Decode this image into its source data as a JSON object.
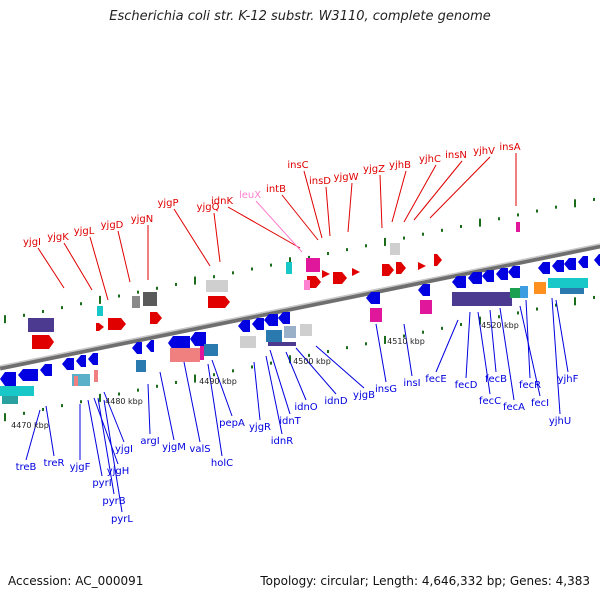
{
  "title": "Escherichia coli str. K-12 substr. W3110, complete genome",
  "footer": {
    "accession": "Accession: AC_000091",
    "summary": "Topology: circular; Length: 4,646,332 bp; Genes: 4,383"
  },
  "colors": {
    "forward_strand": "#e00000",
    "reverse_strand": "#0000e0",
    "rna_gene": "#ff7fd0",
    "backbone": "#888888",
    "grid_dots": "#1a6b1a"
  },
  "ruler": [
    {
      "label": "4470 kbp"
    },
    {
      "label": "4480 kbp"
    },
    {
      "label": "4490 kbp"
    },
    {
      "label": "4500 kbp"
    },
    {
      "label": "4510 kbp"
    },
    {
      "label": "4520 kbp"
    }
  ],
  "genes_top": [
    {
      "name": "yjgI"
    },
    {
      "name": "yjgK"
    },
    {
      "name": "yjgL"
    },
    {
      "name": "yjgD"
    },
    {
      "name": "yjgN"
    },
    {
      "name": "yjgP"
    },
    {
      "name": "yjgQ"
    },
    {
      "name": "idnK"
    },
    {
      "name": "leuX"
    },
    {
      "name": "intB"
    },
    {
      "name": "insC"
    },
    {
      "name": "insD"
    },
    {
      "name": "yjgW"
    },
    {
      "name": "yjgZ"
    },
    {
      "name": "yjhB"
    },
    {
      "name": "yjhC"
    },
    {
      "name": "insN"
    },
    {
      "name": "yjhV"
    },
    {
      "name": "insA"
    }
  ],
  "genes_bottom": [
    {
      "name": "treB"
    },
    {
      "name": "treR"
    },
    {
      "name": "yjgF"
    },
    {
      "name": "pyrI"
    },
    {
      "name": "yjgH"
    },
    {
      "name": "pyrB"
    },
    {
      "name": "pyrL"
    },
    {
      "name": "yjgI"
    },
    {
      "name": "argI"
    },
    {
      "name": "yjgM"
    },
    {
      "name": "valS"
    },
    {
      "name": "holC"
    },
    {
      "name": "pepA"
    },
    {
      "name": "yjgR"
    },
    {
      "name": "idnR"
    },
    {
      "name": "idnT"
    },
    {
      "name": "idnO"
    },
    {
      "name": "idnD"
    },
    {
      "name": "yjgB"
    },
    {
      "name": "insG"
    },
    {
      "name": "insI"
    },
    {
      "name": "fecE"
    },
    {
      "name": "fecD"
    },
    {
      "name": "fecC"
    },
    {
      "name": "fecB"
    },
    {
      "name": "fecA"
    },
    {
      "name": "fecI"
    },
    {
      "name": "fecR"
    },
    {
      "name": "yjhU"
    },
    {
      "name": "yjhF"
    }
  ]
}
